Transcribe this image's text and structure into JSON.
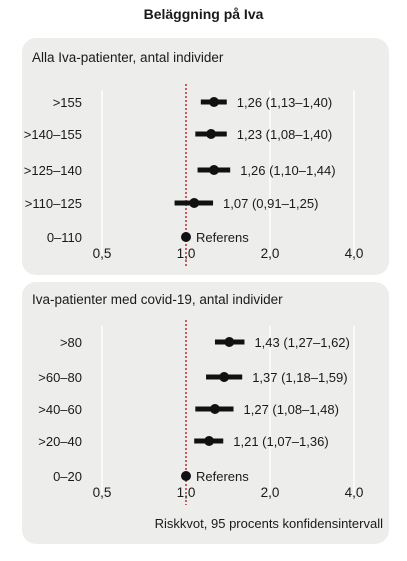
{
  "title": "Beläggning på Iva",
  "footer": "Riskkvot, 95 procents konfidensintervall",
  "colors": {
    "panel": "#ededec",
    "reference_line": "#b22222",
    "marker": "#111111"
  },
  "chart_data": [
    {
      "type": "forest",
      "subtitle": "Alla Iva-patienter, antal individer",
      "x_scale": "log",
      "xticks": [
        0.5,
        1.0,
        2.0,
        4.0
      ],
      "xtick_labels": [
        "0,5",
        "1,0",
        "2,0",
        "4,0"
      ],
      "reference_value": 1.0,
      "rows": [
        {
          "category": ">155",
          "value": 1.26,
          "ci_low": 1.13,
          "ci_high": 1.4,
          "label": "1,26 (1,13–1,40)"
        },
        {
          "category": ">140–155",
          "value": 1.23,
          "ci_low": 1.08,
          "ci_high": 1.4,
          "label": "1,23 (1,08–1,40)"
        },
        {
          "category": ">125–140",
          "value": 1.26,
          "ci_low": 1.1,
          "ci_high": 1.44,
          "label": "1,26 (1,10–1,44)"
        },
        {
          "category": ">110–125",
          "value": 1.07,
          "ci_low": 0.91,
          "ci_high": 1.25,
          "label": "1,07 (0,91–1,25)"
        },
        {
          "category": "0–110",
          "value": 1.0,
          "ci_low": 1.0,
          "ci_high": 1.0,
          "label": "Referens"
        }
      ]
    },
    {
      "type": "forest",
      "subtitle": "Iva-patienter med covid-19, antal individer",
      "x_scale": "log",
      "xticks": [
        0.5,
        1.0,
        2.0,
        4.0
      ],
      "xtick_labels": [
        "0,5",
        "1,0",
        "2,0",
        "4,0"
      ],
      "reference_value": 1.0,
      "rows": [
        {
          "category": ">80",
          "value": 1.43,
          "ci_low": 1.27,
          "ci_high": 1.62,
          "label": "1,43 (1,27–1,62)"
        },
        {
          "category": ">60–80",
          "value": 1.37,
          "ci_low": 1.18,
          "ci_high": 1.59,
          "label": "1,37 (1,18–1,59)"
        },
        {
          "category": ">40–60",
          "value": 1.27,
          "ci_low": 1.08,
          "ci_high": 1.48,
          "label": "1,27 (1,08–1,48)"
        },
        {
          "category": ">20–40",
          "value": 1.21,
          "ci_low": 1.07,
          "ci_high": 1.36,
          "label": "1,21 (1,07–1,36)"
        },
        {
          "category": "0–20",
          "value": 1.0,
          "ci_low": 1.0,
          "ci_high": 1.0,
          "label": "Referens"
        }
      ]
    }
  ]
}
